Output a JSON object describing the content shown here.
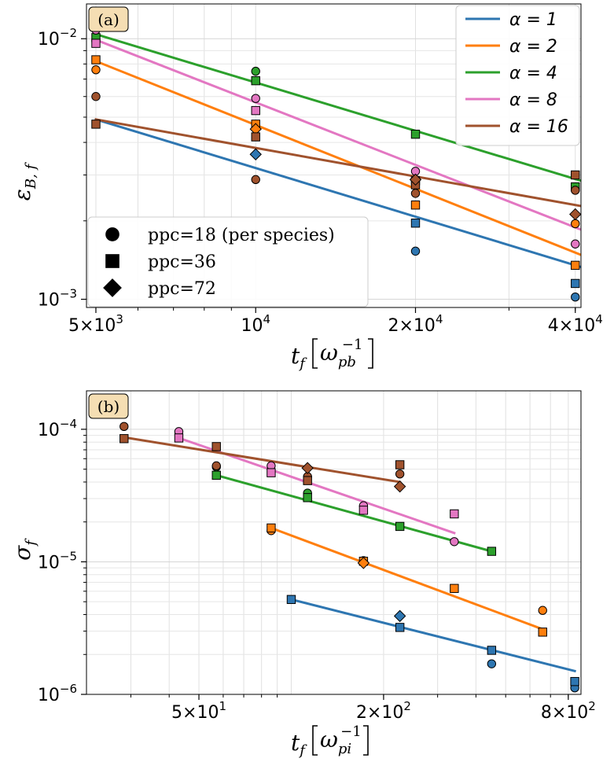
{
  "chart_data": [
    {
      "type": "scatter",
      "panel_label": "(a)",
      "xlabel": "t_f [ω_pb^-1]",
      "ylabel": "ε_B,f",
      "xscale": "log",
      "yscale": "log",
      "xlim": [
        4800,
        41000
      ],
      "ylim": [
        0.00093,
        0.0136
      ],
      "grid": true,
      "legend_placement": "top-right",
      "x_ticks": [
        {
          "value": 5000,
          "mant": "5",
          "exp": "3"
        },
        {
          "value": 10000,
          "mant": "",
          "exp": "4"
        },
        {
          "value": 20000,
          "mant": "2",
          "exp": "4"
        },
        {
          "value": 40000,
          "mant": "4",
          "exp": "4"
        }
      ],
      "y_ticks": [
        {
          "value": 0.001,
          "exp": "−3"
        },
        {
          "value": 0.01,
          "exp": "−2"
        }
      ],
      "series": [
        {
          "name": "α = 1",
          "color": "#2e76b1",
          "fit": [
            [
              5000,
              0.0049
            ],
            [
              41000,
              0.00133
            ]
          ],
          "points": [
            {
              "marker": "circle",
              "x": 20000,
              "y": 0.00153
            },
            {
              "marker": "circle",
              "x": 40000,
              "y": 0.00102
            },
            {
              "marker": "square",
              "x": 20000,
              "y": 0.00196
            },
            {
              "marker": "square",
              "x": 40000,
              "y": 0.00115
            },
            {
              "marker": "diamond",
              "x": 10000,
              "y": 0.0036
            }
          ]
        },
        {
          "name": "α = 2",
          "color": "#ff7f0e",
          "fit": [
            [
              5000,
              0.0082
            ],
            [
              41000,
              0.00148
            ]
          ],
          "points": [
            {
              "marker": "circle",
              "x": 5000,
              "y": 0.0076
            },
            {
              "marker": "circle",
              "x": 40000,
              "y": 0.00195
            },
            {
              "marker": "square",
              "x": 5000,
              "y": 0.0083
            },
            {
              "marker": "square",
              "x": 10000,
              "y": 0.0047
            },
            {
              "marker": "square",
              "x": 20000,
              "y": 0.0023
            },
            {
              "marker": "square",
              "x": 40000,
              "y": 0.00135
            },
            {
              "marker": "diamond",
              "x": 10000,
              "y": 0.0045
            }
          ]
        },
        {
          "name": "α = 4",
          "color": "#2ca02c",
          "fit": [
            [
              5000,
              0.0104
            ],
            [
              41000,
              0.00285
            ]
          ],
          "points": [
            {
              "marker": "circle",
              "x": 5000,
              "y": 0.0117
            },
            {
              "marker": "circle",
              "x": 10000,
              "y": 0.0075
            },
            {
              "marker": "square",
              "x": 5000,
              "y": 0.0101
            },
            {
              "marker": "square",
              "x": 10000,
              "y": 0.0069
            },
            {
              "marker": "square",
              "x": 20000,
              "y": 0.0043
            },
            {
              "marker": "square",
              "x": 40000,
              "y": 0.0027
            }
          ]
        },
        {
          "name": "α = 8",
          "color": "#e377c2",
          "fit": [
            [
              5000,
              0.0099
            ],
            [
              41000,
              0.00185
            ]
          ],
          "points": [
            {
              "marker": "circle",
              "x": 5000,
              "y": 0.0108
            },
            {
              "marker": "circle",
              "x": 10000,
              "y": 0.0059
            },
            {
              "marker": "circle",
              "x": 20000,
              "y": 0.0031
            },
            {
              "marker": "circle",
              "x": 40000,
              "y": 0.00163
            },
            {
              "marker": "square",
              "x": 5000,
              "y": 0.0096
            },
            {
              "marker": "square",
              "x": 10000,
              "y": 0.0053
            },
            {
              "marker": "square",
              "x": 20000,
              "y": 0.00285
            }
          ]
        },
        {
          "name": "α = 16",
          "color": "#a0522d",
          "fit": [
            [
              5000,
              0.0049
            ],
            [
              41000,
              0.00228
            ]
          ],
          "points": [
            {
              "marker": "circle",
              "x": 5000,
              "y": 0.006
            },
            {
              "marker": "circle",
              "x": 10000,
              "y": 0.00288
            },
            {
              "marker": "circle",
              "x": 20000,
              "y": 0.00255
            },
            {
              "marker": "circle",
              "x": 40000,
              "y": 0.00262
            },
            {
              "marker": "square",
              "x": 5000,
              "y": 0.0047
            },
            {
              "marker": "square",
              "x": 10000,
              "y": 0.0042
            },
            {
              "marker": "square",
              "x": 20000,
              "y": 0.00275
            },
            {
              "marker": "square",
              "x": 40000,
              "y": 0.003
            },
            {
              "marker": "diamond",
              "x": 20000,
              "y": 0.00288
            },
            {
              "marker": "diamond",
              "x": 40000,
              "y": 0.00212
            }
          ]
        }
      ],
      "legend_alpha": [
        "α = 1",
        "α = 2",
        "α = 4",
        "α = 8",
        "α = 16"
      ],
      "legend_markers": [
        {
          "marker": "circle",
          "label": "ppc=18 (per species)"
        },
        {
          "marker": "square",
          "label": "ppc=36"
        },
        {
          "marker": "diamond",
          "label": "ppc=72"
        }
      ]
    },
    {
      "type": "scatter",
      "panel_label": "(b)",
      "xlabel": "t_f [ω_pi^-1]",
      "ylabel": "σ_f",
      "xscale": "log",
      "yscale": "log",
      "xlim": [
        21.5,
        880
      ],
      "ylim": [
        1e-06,
        0.000195
      ],
      "grid": true,
      "x_ticks": [
        {
          "value": 50,
          "mant": "5",
          "exp": "1"
        },
        {
          "value": 200,
          "mant": "2",
          "exp": "2"
        },
        {
          "value": 800,
          "mant": "8",
          "exp": "2"
        }
      ],
      "y_ticks": [
        {
          "value": 1e-06,
          "exp": "−6"
        },
        {
          "value": 1e-05,
          "exp": "−5"
        },
        {
          "value": 0.0001,
          "exp": "−4"
        }
      ],
      "series": [
        {
          "name": "α = 1",
          "color": "#2e76b1",
          "fit": [
            [
              100,
              5.2e-06
            ],
            [
              840,
              1.5e-06
            ]
          ],
          "points": [
            {
              "marker": "square",
              "x": 100,
              "y": 5.2e-06
            },
            {
              "marker": "square",
              "x": 226,
              "y": 3.2e-06
            },
            {
              "marker": "diamond",
              "x": 226,
              "y": 3.9e-06
            },
            {
              "marker": "circle",
              "x": 450,
              "y": 1.7e-06
            },
            {
              "marker": "square",
              "x": 450,
              "y": 2.15e-06
            },
            {
              "marker": "circle",
              "x": 840,
              "y": 1.12e-06
            },
            {
              "marker": "square",
              "x": 840,
              "y": 1.25e-06
            }
          ]
        },
        {
          "name": "α = 2",
          "color": "#ff7f0e",
          "fit": [
            [
              86,
              1.8e-05
            ],
            [
              660,
              3.1e-06
            ]
          ],
          "points": [
            {
              "marker": "circle",
              "x": 86,
              "y": 1.72e-05
            },
            {
              "marker": "square",
              "x": 86,
              "y": 1.8e-05
            },
            {
              "marker": "circle",
              "x": 172,
              "y": 1.02e-05
            },
            {
              "marker": "square",
              "x": 172,
              "y": 1.01e-05
            },
            {
              "marker": "diamond",
              "x": 172,
              "y": 9.8e-06
            },
            {
              "marker": "square",
              "x": 340,
              "y": 6.3e-06
            },
            {
              "marker": "circle",
              "x": 660,
              "y": 4.3e-06
            },
            {
              "marker": "square",
              "x": 660,
              "y": 2.95e-06
            }
          ]
        },
        {
          "name": "α = 4",
          "color": "#2ca02c",
          "fit": [
            [
              57,
              4.5e-05
            ],
            [
              450,
              1.2e-05
            ]
          ],
          "points": [
            {
              "marker": "circle",
              "x": 57,
              "y": 5.2e-05
            },
            {
              "marker": "square",
              "x": 57,
              "y": 4.5e-05
            },
            {
              "marker": "circle",
              "x": 113,
              "y": 3.3e-05
            },
            {
              "marker": "square",
              "x": 113,
              "y": 3.05e-05
            },
            {
              "marker": "square",
              "x": 226,
              "y": 1.85e-05
            },
            {
              "marker": "square",
              "x": 450,
              "y": 1.2e-05
            }
          ]
        },
        {
          "name": "α = 8",
          "color": "#e377c2",
          "fit": [
            [
              43,
              8.6e-05
            ],
            [
              340,
              1.65e-05
            ]
          ],
          "points": [
            {
              "marker": "circle",
              "x": 43,
              "y": 9.6e-05
            },
            {
              "marker": "square",
              "x": 43,
              "y": 8.6e-05
            },
            {
              "marker": "circle",
              "x": 86,
              "y": 5.3e-05
            },
            {
              "marker": "square",
              "x": 86,
              "y": 4.7e-05
            },
            {
              "marker": "circle",
              "x": 172,
              "y": 2.65e-05
            },
            {
              "marker": "square",
              "x": 172,
              "y": 2.45e-05
            },
            {
              "marker": "circle",
              "x": 340,
              "y": 1.42e-05
            },
            {
              "marker": "square",
              "x": 340,
              "y": 2.3e-05
            }
          ]
        },
        {
          "name": "α = 16",
          "color": "#a0522d",
          "fit": [
            [
              28.5,
              8.7e-05
            ],
            [
              226,
              4e-05
            ]
          ],
          "points": [
            {
              "marker": "circle",
              "x": 28.5,
              "y": 0.000105
            },
            {
              "marker": "square",
              "x": 28.5,
              "y": 8.5e-05
            },
            {
              "marker": "circle",
              "x": 57,
              "y": 5.3e-05
            },
            {
              "marker": "square",
              "x": 57,
              "y": 7.4e-05
            },
            {
              "marker": "circle",
              "x": 113,
              "y": 4.4e-05
            },
            {
              "marker": "square",
              "x": 113,
              "y": 4.1e-05
            },
            {
              "marker": "diamond",
              "x": 113,
              "y": 5.1e-05
            },
            {
              "marker": "circle",
              "x": 226,
              "y": 4.6e-05
            },
            {
              "marker": "square",
              "x": 226,
              "y": 5.4e-05
            },
            {
              "marker": "diamond",
              "x": 226,
              "y": 3.7e-05
            }
          ]
        }
      ]
    }
  ]
}
